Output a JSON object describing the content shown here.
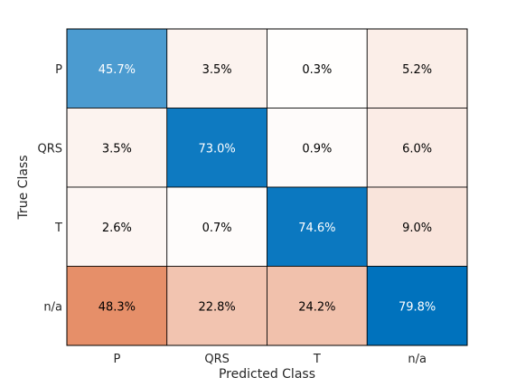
{
  "chart_data": {
    "type": "heatmap",
    "title": "",
    "xlabel": "Predicted Class",
    "ylabel": "True Class",
    "x_categories": [
      "P",
      "QRS",
      "T",
      "n/a"
    ],
    "y_categories": [
      "P",
      "QRS",
      "T",
      "n/a"
    ],
    "values": [
      [
        45.7,
        3.5,
        0.3,
        5.2
      ],
      [
        3.5,
        73.0,
        0.9,
        6.0
      ],
      [
        2.6,
        0.7,
        74.6,
        9.0
      ],
      [
        48.3,
        22.8,
        24.2,
        79.8
      ]
    ],
    "labels": [
      [
        "45.7%",
        "3.5%",
        "0.3%",
        "5.2%"
      ],
      [
        "3.5%",
        "73.0%",
        "0.9%",
        "6.0%"
      ],
      [
        "2.6%",
        "0.7%",
        "74.6%",
        "9.0%"
      ],
      [
        "48.3%",
        "22.8%",
        "24.2%",
        "79.8%"
      ]
    ],
    "colors": {
      "diagonal_high": "#0072BD",
      "diagonal_mid": "#6FAEDB",
      "off_diagonal_high": "#D95319",
      "off_diagonal_low": "#FFFFFF",
      "grid": "#000000"
    }
  }
}
